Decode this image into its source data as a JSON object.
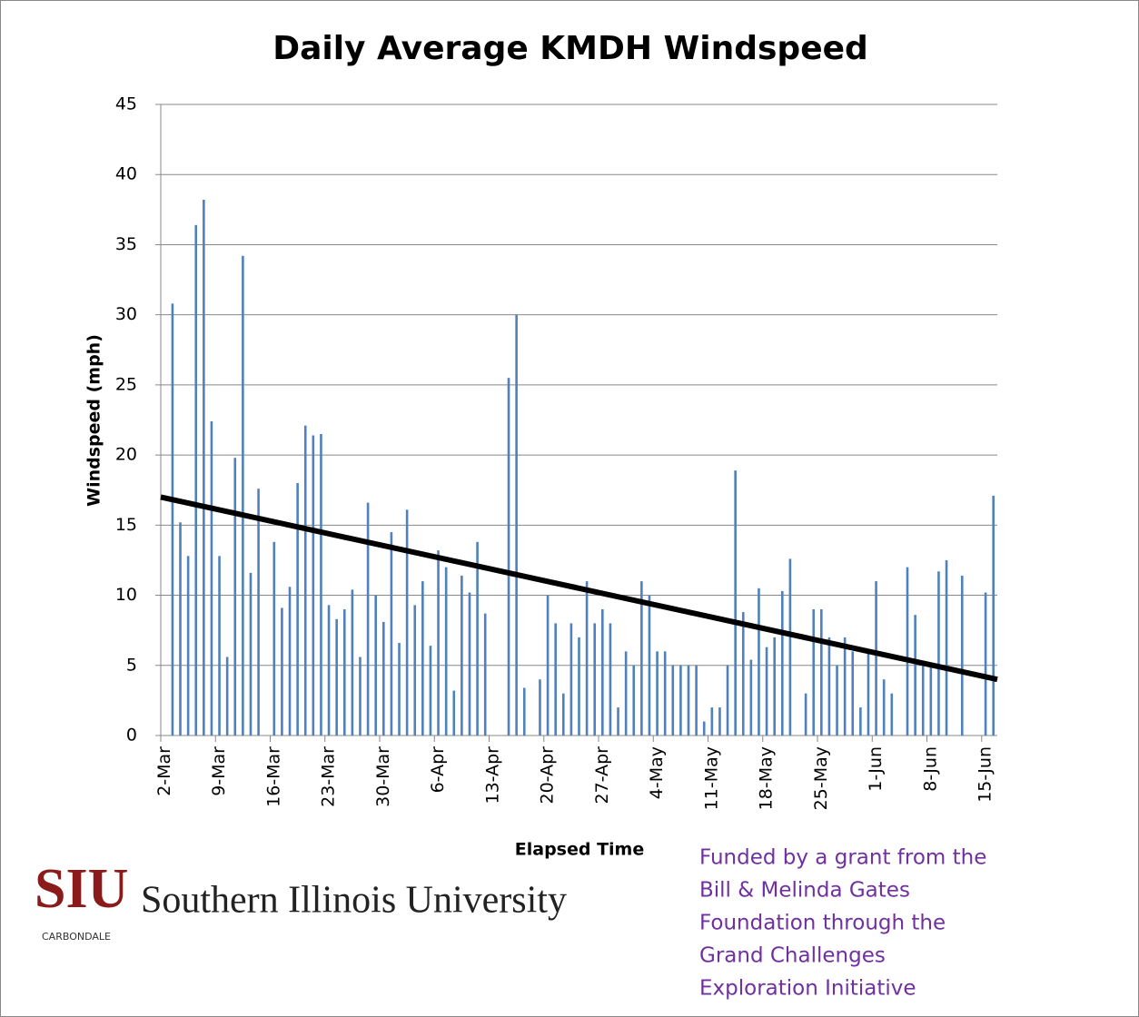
{
  "chart_data": {
    "type": "bar",
    "title": "Daily Average KMDH Windspeed",
    "x_label": "Elapsed Time",
    "y_label": "Windspeed (mph)",
    "categories": [
      "2-Mar",
      null,
      null,
      null,
      null,
      null,
      null,
      "9-Mar",
      null,
      null,
      null,
      null,
      null,
      null,
      "16-Mar",
      null,
      null,
      null,
      null,
      null,
      null,
      "23-Mar",
      null,
      null,
      null,
      null,
      null,
      null,
      "30-Mar",
      null,
      null,
      null,
      null,
      null,
      null,
      "6-Apr",
      null,
      null,
      null,
      null,
      null,
      null,
      "13-Apr",
      null,
      null,
      null,
      null,
      null,
      null,
      "20-Apr",
      null,
      null,
      null,
      null,
      null,
      null,
      "27-Apr",
      null,
      null,
      null,
      null,
      null,
      null,
      "4-May",
      null,
      null,
      null,
      null,
      null,
      null,
      "11-May",
      null,
      null,
      null,
      null,
      null,
      null,
      "18-May",
      null,
      null,
      null,
      null,
      null,
      null,
      "25-May",
      null,
      null,
      null,
      null,
      null,
      null,
      "1-Jun",
      null,
      null,
      null,
      null,
      null,
      null,
      "8-Jun",
      null,
      null,
      null,
      null,
      null,
      null,
      "15-Jun",
      null
    ],
    "values": [
      null,
      30.8,
      15.2,
      12.8,
      36.4,
      38.2,
      22.4,
      12.8,
      5.6,
      19.8,
      34.2,
      11.6,
      17.6,
      null,
      13.8,
      9.1,
      10.6,
      18,
      22.1,
      21.4,
      21.5,
      9.3,
      8.3,
      9,
      10.4,
      5.6,
      16.6,
      10,
      8.1,
      14.5,
      6.6,
      16.1,
      9.3,
      11,
      6.4,
      13.2,
      12,
      3.2,
      11.4,
      10.2,
      13.8,
      8.7,
      null,
      null,
      25.5,
      30,
      3.4,
      null,
      4,
      10,
      8,
      3,
      8,
      7,
      11,
      8,
      9,
      8,
      2,
      6,
      5,
      11,
      10,
      6,
      6,
      5,
      5,
      5,
      5,
      1,
      2,
      2,
      5,
      18.9,
      8.8,
      5.4,
      10.5,
      6.3,
      7,
      10.3,
      12.6,
      null,
      3,
      9,
      9,
      7,
      5,
      7,
      6,
      2,
      6,
      11,
      4,
      3,
      null,
      12,
      8.6,
      5,
      5,
      11.7,
      12.5,
      null,
      11.4,
      null,
      null,
      10.2,
      17.1
    ],
    "color": "#4f81bd",
    "ylim": [
      0,
      45
    ],
    "yticks": [
      0,
      5,
      10,
      15,
      20,
      25,
      30,
      35,
      40,
      45
    ],
    "grid": true,
    "trendline": {
      "values": [
        17,
        4
      ],
      "color": "#000000"
    }
  },
  "logo": {
    "mark": "SIU",
    "name": "Southern Illinois University",
    "campus": "CARBONDALE"
  },
  "note": [
    "Funded by a grant from the",
    "Bill & Melinda Gates",
    "Foundation through the",
    "Grand Challenges",
    "Exploration Initiative"
  ]
}
